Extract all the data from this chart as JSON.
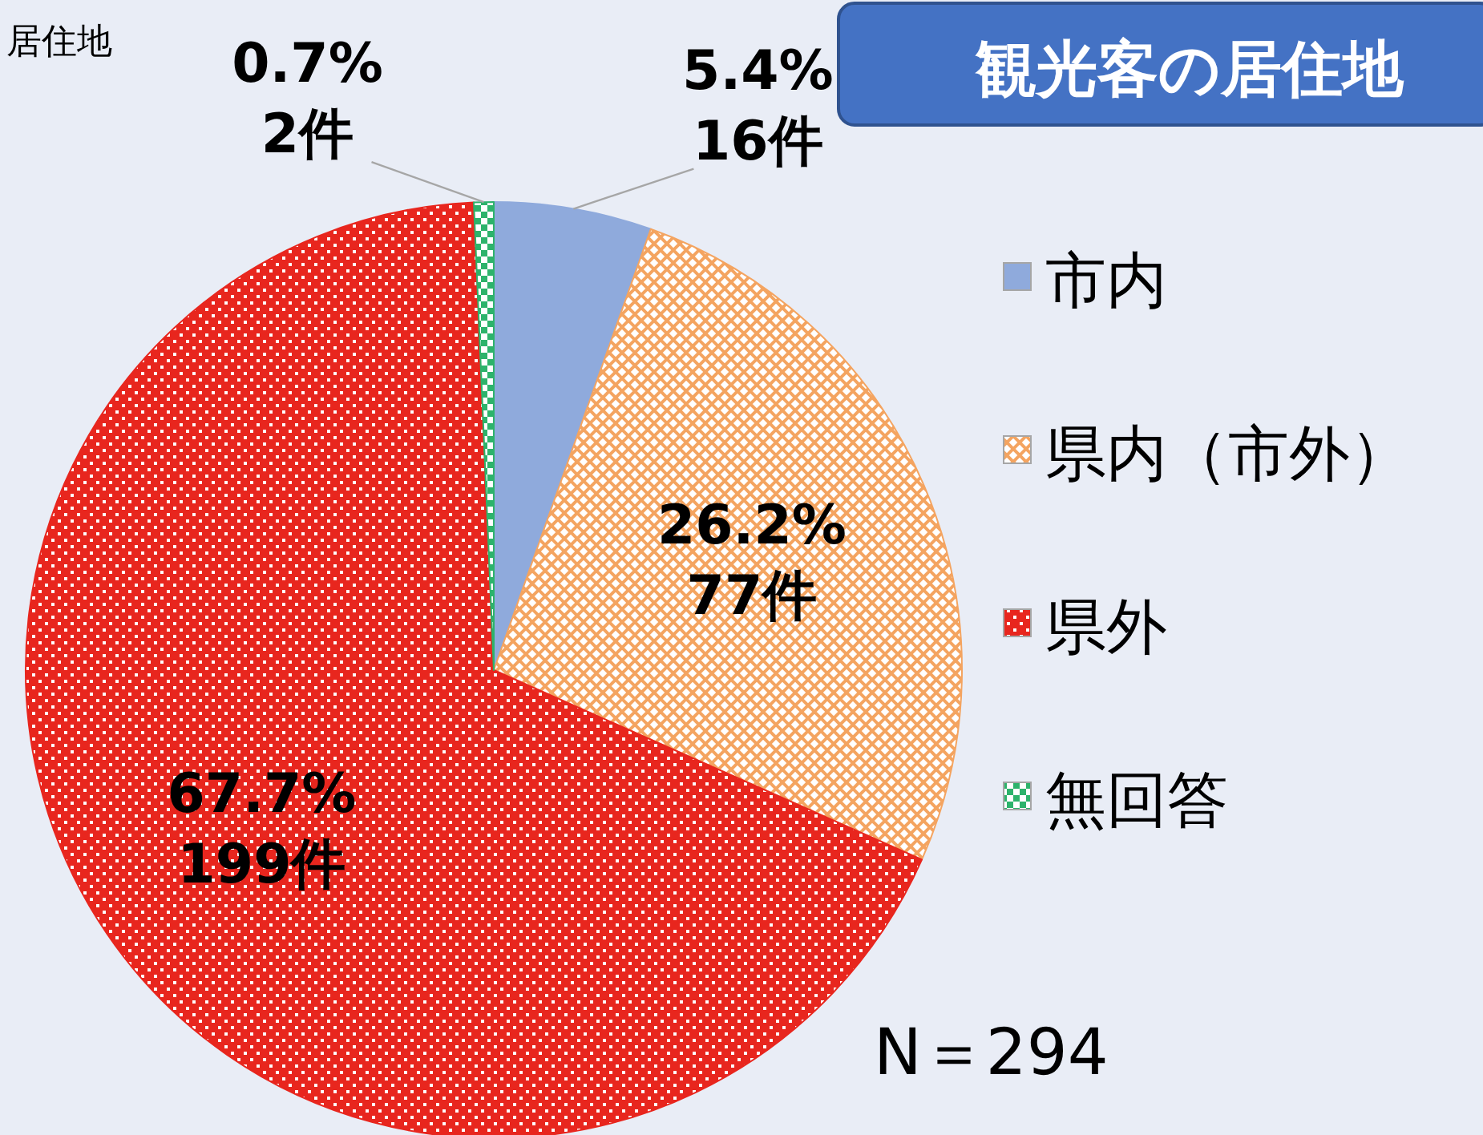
{
  "chart_data": {
    "type": "pie",
    "title": "観光客の居住地",
    "categories": [
      "市内",
      "県内（市外）",
      "県外",
      "無回答"
    ],
    "values": [
      16,
      77,
      199,
      2
    ],
    "value_labels": [
      "5.4%\n16件",
      "26.2%\n77件",
      "67.7%\n199件",
      "0.7%\n2件"
    ],
    "colors": [
      "#8faadc",
      "#f4a460",
      "#e8261e",
      "#2db36b"
    ],
    "legend": "right",
    "annotations": [
      "居住地",
      "N＝294"
    ]
  }
}
